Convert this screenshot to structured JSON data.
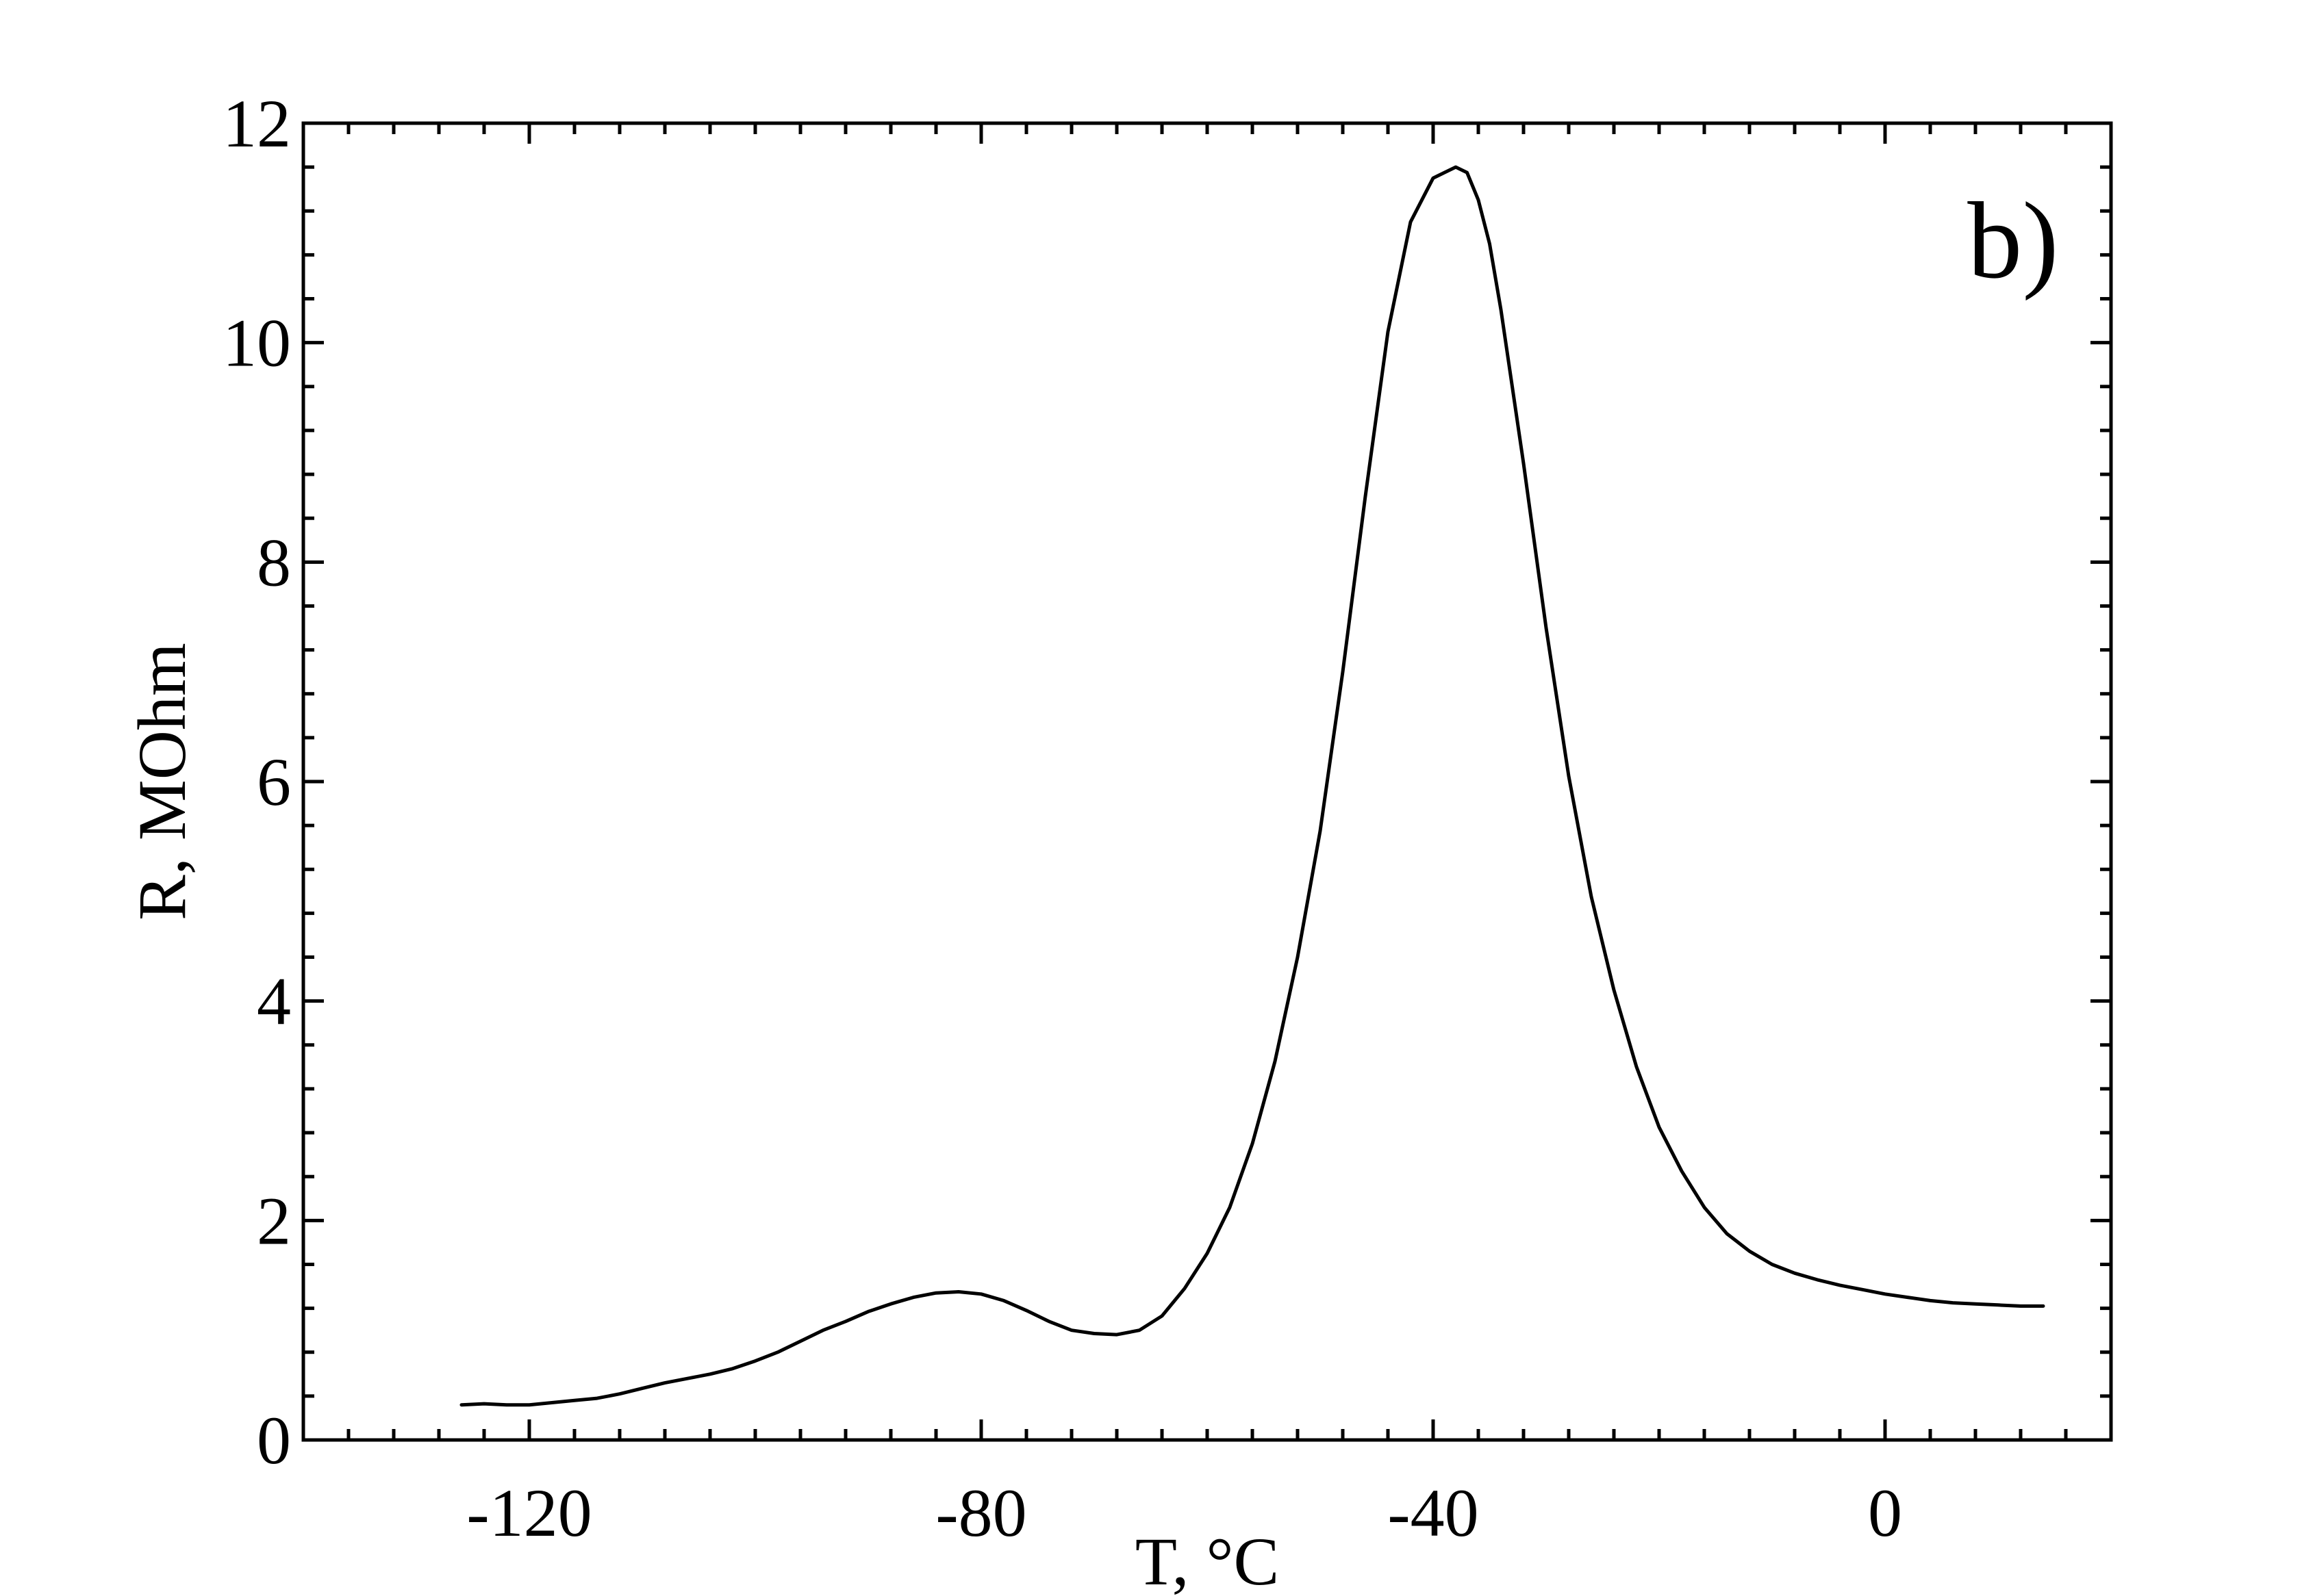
{
  "chart_data": {
    "type": "line",
    "annotation": "b)",
    "xlabel": "T, °C",
    "ylabel": "R, MOhm",
    "xlim": [
      -140,
      20
    ],
    "ylim": [
      0,
      12
    ],
    "x_ticks": [
      -120,
      -80,
      -40,
      0
    ],
    "x_tick_labels": [
      "-120",
      "-80",
      "-40",
      "0"
    ],
    "x_minor_step": 4,
    "y_ticks": [
      0,
      2,
      4,
      6,
      8,
      10,
      12
    ],
    "y_tick_labels": [
      "0",
      "2",
      "4",
      "6",
      "8",
      "10",
      "12"
    ],
    "y_minor_step": 0.4,
    "grid": false,
    "legend": "none",
    "colors": {
      "line": "#000000",
      "axes": "#000000",
      "background": "#ffffff"
    },
    "series": [
      {
        "x": [
          -126,
          -124,
          -122,
          -120,
          -118,
          -116,
          -114,
          -112,
          -110,
          -108,
          -106,
          -104,
          -102,
          -100,
          -98,
          -96,
          -94,
          -92,
          -90,
          -88,
          -86,
          -84,
          -82,
          -80,
          -78,
          -76,
          -74,
          -72,
          -70,
          -68,
          -66,
          -64,
          -62,
          -60,
          -58,
          -56,
          -54,
          -52,
          -50,
          -48,
          -46,
          -44,
          -42,
          -40,
          -38,
          -37,
          -36,
          -35,
          -34,
          -33,
          -32,
          -30,
          -28,
          -26,
          -24,
          -22,
          -20,
          -18,
          -16,
          -14,
          -12,
          -10,
          -8,
          -6,
          -4,
          -2,
          0,
          2,
          4,
          6,
          8,
          10,
          12,
          14
        ],
        "y": [
          0.32,
          0.33,
          0.32,
          0.32,
          0.34,
          0.36,
          0.38,
          0.42,
          0.47,
          0.52,
          0.56,
          0.6,
          0.65,
          0.72,
          0.8,
          0.9,
          1.0,
          1.08,
          1.17,
          1.24,
          1.3,
          1.34,
          1.35,
          1.33,
          1.27,
          1.18,
          1.08,
          1.0,
          0.97,
          0.96,
          1.0,
          1.13,
          1.38,
          1.7,
          2.12,
          2.7,
          3.45,
          4.4,
          5.55,
          7.0,
          8.6,
          10.1,
          11.1,
          11.5,
          11.6,
          11.55,
          11.3,
          10.9,
          10.3,
          9.6,
          8.9,
          7.4,
          6.05,
          4.95,
          4.1,
          3.4,
          2.85,
          2.45,
          2.12,
          1.88,
          1.72,
          1.6,
          1.52,
          1.46,
          1.41,
          1.37,
          1.33,
          1.3,
          1.27,
          1.25,
          1.24,
          1.23,
          1.22,
          1.22
        ]
      }
    ]
  }
}
